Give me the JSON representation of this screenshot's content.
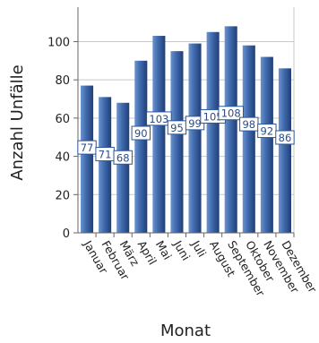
{
  "chart_data": {
    "type": "bar",
    "xlabel": "Monat",
    "ylabel": "Anzahl Unfälle",
    "categories": [
      "Januar",
      "Februar",
      "März",
      "April",
      "Mai",
      "Juni",
      "Juli",
      "August",
      "September",
      "Oktober",
      "November",
      "Dezember"
    ],
    "values": [
      77,
      71,
      68,
      90,
      103,
      95,
      99,
      105,
      108,
      98,
      92,
      86
    ],
    "data_labels": [
      "77",
      "71",
      "68",
      "90",
      "103",
      "95",
      "99",
      "105",
      "108",
      "98",
      "92",
      "86"
    ],
    "yticks": [
      "0",
      "20",
      "40",
      "60",
      "80",
      "100"
    ],
    "ylim": [
      0,
      118
    ],
    "grid": true,
    "colors": {
      "bar_light": "#5b86c6",
      "bar_dark": "#254a86",
      "label_border": "#2b5698",
      "grid": "#c8c8c8",
      "axis": "#666666"
    }
  }
}
